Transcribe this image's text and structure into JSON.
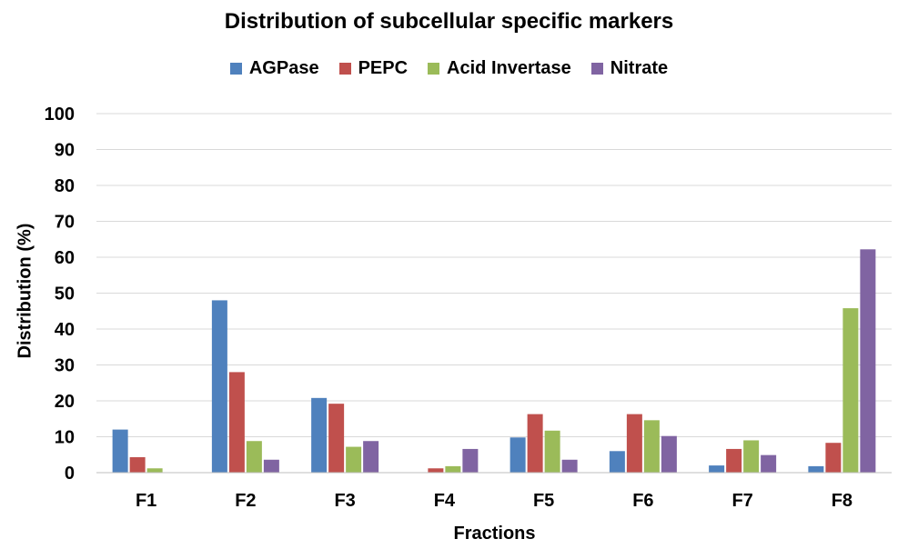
{
  "chart_data": {
    "type": "bar",
    "title": "Distribution of subcellular specific markers",
    "xlabel": "Fractions",
    "ylabel": "Distribution (%)",
    "ylim": [
      0,
      100
    ],
    "yticks": [
      0,
      10,
      20,
      30,
      40,
      50,
      60,
      70,
      80,
      90,
      100
    ],
    "grid": true,
    "legend_position": "top",
    "categories": [
      "F1",
      "F2",
      "F3",
      "F4",
      "F5",
      "F6",
      "F7",
      "F8"
    ],
    "series": [
      {
        "name": "AGPase",
        "color": "#4F81BD",
        "values": [
          12.0,
          48.0,
          20.8,
          0,
          9.8,
          6.0,
          2.0,
          1.8
        ]
      },
      {
        "name": "PEPC",
        "color": "#C0504D",
        "values": [
          4.3,
          28.0,
          19.2,
          1.2,
          16.3,
          16.3,
          6.6,
          8.3
        ]
      },
      {
        "name": "Acid Invertase",
        "color": "#9BBB59",
        "values": [
          1.2,
          8.8,
          7.2,
          1.8,
          11.7,
          14.6,
          9.0,
          45.8
        ]
      },
      {
        "name": "Nitrate",
        "color": "#8064A2",
        "values": [
          0,
          3.6,
          8.8,
          6.6,
          3.6,
          10.2,
          4.9,
          62.2
        ]
      }
    ]
  }
}
